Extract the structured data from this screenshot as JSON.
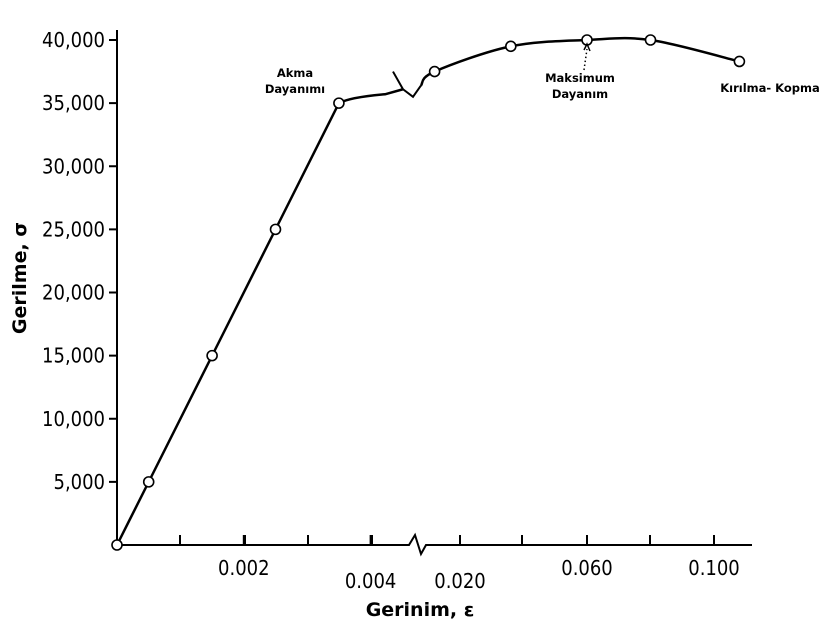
{
  "chart_data": {
    "type": "line",
    "xlabel": "Gerinim, ε",
    "ylabel": "Gerilme, σ",
    "ylim": [
      0,
      40000
    ],
    "y_ticks": [
      {
        "value": 5000,
        "label": "5,000"
      },
      {
        "value": 10000,
        "label": "10,000"
      },
      {
        "value": 15000,
        "label": "15,000"
      },
      {
        "value": 20000,
        "label": "20,000"
      },
      {
        "value": 25000,
        "label": "25,000"
      },
      {
        "value": 30000,
        "label": "30,000"
      },
      {
        "value": 35000,
        "label": "35,000"
      },
      {
        "value": 40000,
        "label": "40,000"
      }
    ],
    "x_segments": [
      {
        "name": "elastic",
        "range": [
          0,
          0.0047
        ],
        "labels": [
          {
            "value": 0.002,
            "label": "0.002"
          },
          {
            "value": 0.004,
            "label": "0.004"
          }
        ]
      },
      {
        "name": "plastic",
        "range": [
          0.0047,
          0.11
        ],
        "labels": [
          {
            "value": 0.02,
            "label": "0.020"
          },
          {
            "value": 0.06,
            "label": "0.060"
          },
          {
            "value": 0.1,
            "label": "0.100"
          }
        ]
      }
    ],
    "series": [
      {
        "points": [
          {
            "x": 0,
            "y": 0
          },
          {
            "x": 0.0005,
            "y": 5000
          },
          {
            "x": 0.0015,
            "y": 15000
          },
          {
            "x": 0.0025,
            "y": 25000
          },
          {
            "x": 0.0035,
            "y": 35000
          },
          {
            "x": 0.012,
            "y": 37500
          },
          {
            "x": 0.036,
            "y": 39500
          },
          {
            "x": 0.06,
            "y": 40000
          },
          {
            "x": 0.08,
            "y": 40000
          },
          {
            "x": 0.108,
            "y": 38300
          }
        ]
      }
    ],
    "annotations": [
      {
        "lines": [
          "Akma",
          "Dayanımı"
        ],
        "x": 0.0035,
        "y": 35000
      },
      {
        "lines": [
          "Maksimum",
          "Dayanım"
        ],
        "x": 0.06,
        "y": 40000,
        "arrow": "dotted"
      },
      {
        "lines": [
          "Kırılma- Kopma"
        ],
        "x": 0.108,
        "y": 38300
      }
    ],
    "grid": false,
    "legend": "none"
  }
}
